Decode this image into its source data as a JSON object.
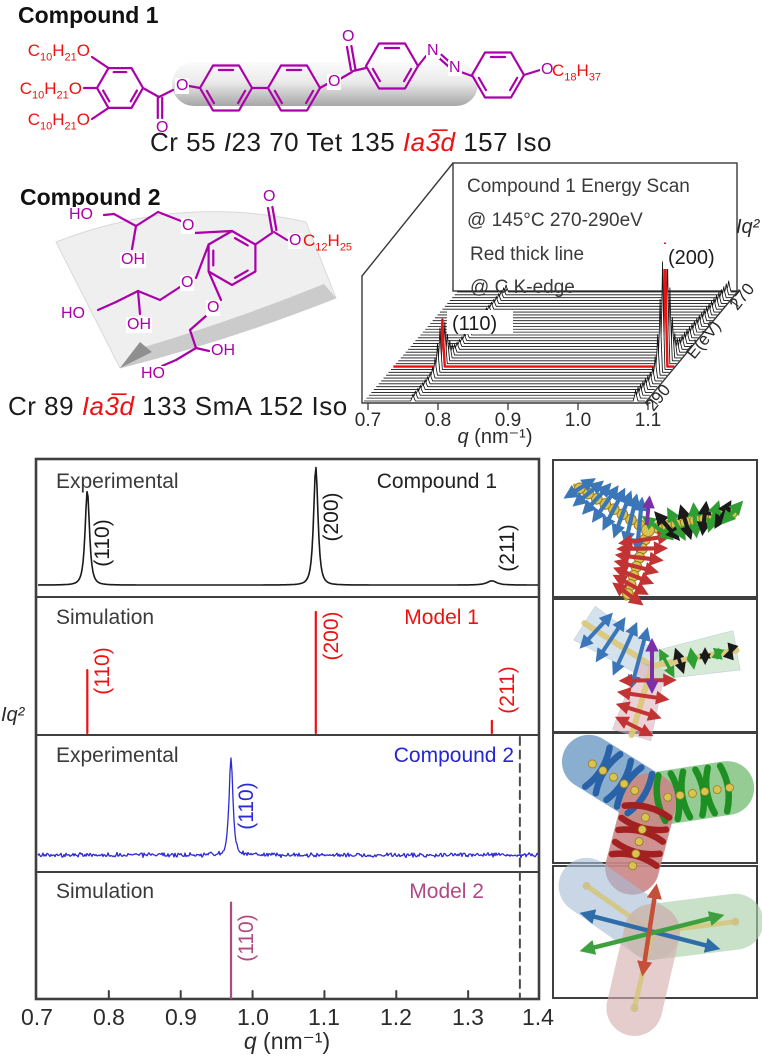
{
  "compound1": {
    "title": "Compound 1",
    "chain_labels": [
      "C10H21O",
      "C10H21O",
      "C10H21O"
    ],
    "tail_O": "O",
    "tail_label": "C18H37",
    "atom_O": "O",
    "atom_N": "N",
    "phase_segments": [
      {
        "text": "Cr 55 ",
        "cls": ""
      },
      {
        "text": "I",
        "cls": "it"
      },
      {
        "text": "23 70 Tet 135 ",
        "cls": ""
      },
      {
        "text": "Ia3̅d",
        "cls": "it red"
      },
      {
        "text": " 157 Iso",
        "cls": ""
      }
    ],
    "bond_color": "#aa00aa",
    "alkyl_color": "#ee1111"
  },
  "compound2": {
    "title": "Compound 2",
    "ester_O": "O",
    "tail_label": "C12H25",
    "ether_O": "O",
    "ho": "HO",
    "oh": "OH",
    "phase_segments": [
      {
        "text": "Cr 89 ",
        "cls": ""
      },
      {
        "text": "Ia3̅d",
        "cls": "it red"
      },
      {
        "text": " 133 SmA 152 Iso",
        "cls": ""
      }
    ]
  },
  "chart_data": [
    {
      "id": "energy_scan",
      "type": "line",
      "style_3d": "waterfall",
      "title_lines": [
        "Compound 1 Energy Scan",
        "@ 145°C 270-290eV",
        "Red thick line",
        "@ C K-edge"
      ],
      "ylabel": "Iq²",
      "zlabel": "E(eV)",
      "xlabel_segments": [
        {
          "text": "q",
          "cls": "it"
        },
        {
          "text": " (nm⁻¹)",
          "cls": ""
        }
      ],
      "x_ticks": [
        "0.7",
        "0.8",
        "0.9",
        "1.0",
        "1.1"
      ],
      "q_range": [
        0.7,
        1.1
      ],
      "e_ticks": [
        "270",
        "290"
      ],
      "e_range": [
        270,
        290
      ],
      "scans": {
        "n": 39,
        "e_front": 290,
        "e_back": 270,
        "red_index_from_front": 12
      },
      "peaks": [
        {
          "hkl": "(110)",
          "q": 0.77
        },
        {
          "hkl": "(200)",
          "q": 1.088
        }
      ],
      "highlight_color": "#ee1111",
      "line_color": "#141414"
    },
    {
      "id": "diffraction_panels",
      "type": "line",
      "ylabel": "Iq²",
      "x": {
        "min": 0.7,
        "max": 1.4,
        "ticks": [
          "0.7",
          "0.8",
          "0.9",
          "1.0",
          "1.1",
          "1.2",
          "1.3",
          "1.4"
        ],
        "label_segments": [
          {
            "text": "q",
            "cls": "it"
          },
          {
            "text": " (nm⁻¹)",
            "cls": ""
          }
        ]
      },
      "dashed_line_q": 1.372,
      "panels": [
        {
          "left_label": "Experimental",
          "right_label": "Compound 1",
          "right_color": "#222222",
          "color": "#1a1a1a",
          "style": "curve",
          "peaks": [
            {
              "hkl": "(110)",
              "q": 0.77,
              "rel_h": 0.8,
              "w": 0.0045,
              "label_cy": 543
            },
            {
              "hkl": "(200)",
              "q": 1.088,
              "rel_h": 1.0,
              "w": 0.0045,
              "label_cy": 517
            },
            {
              "hkl": "(211)",
              "q": 1.333,
              "rel_h": 0.035,
              "w": 0.01,
              "label_cy": 548
            }
          ]
        },
        {
          "left_label": "Simulation",
          "right_label": "Model 1",
          "right_color": "#ee1111",
          "color": "#ee1111",
          "style": "sticks",
          "peaks": [
            {
              "hkl": "(110)",
              "q": 0.77,
              "rel_h": 0.52,
              "label_cy": 671
            },
            {
              "hkl": "(200)",
              "q": 1.088,
              "rel_h": 1.0,
              "label_cy": 636
            },
            {
              "hkl": "(211)",
              "q": 1.333,
              "rel_h": 0.1,
              "label_cy": 690
            }
          ]
        },
        {
          "left_label": "Experimental",
          "right_label": "Compound 2",
          "right_color": "#2525d6",
          "color": "#2a2ad8",
          "style": "curve",
          "noise": true,
          "peaks": [
            {
              "hkl": "(110)",
              "q": 0.97,
              "rel_h": 0.97,
              "w": 0.004,
              "label_cy": 806
            }
          ]
        },
        {
          "left_label": "Simulation",
          "right_label": "Model 2",
          "right_color": "#b04a82",
          "color": "#b04a82",
          "style": "sticks",
          "peaks": [
            {
              "hkl": "(110)",
              "q": 0.97,
              "rel_h": 0.86,
              "label_cy": 938
            }
          ]
        }
      ]
    }
  ],
  "junction_art": {
    "node_color": "#d9c351",
    "node_edge": "#9a7d1f",
    "rod_color": "#c8b144",
    "colors": {
      "blue": "#3a76b8",
      "red": "#c23434",
      "green": "#2f9e33",
      "black": "#1a1a1a",
      "purple": "#7d2fa8"
    },
    "ribbon_fills": {
      "blue": "#b8cfe4",
      "red": "#e0b4bc",
      "green": "#bedcbe"
    },
    "cylinder_fills": {
      "blue": "#7fa8cc",
      "green": "#8cc88c",
      "red": "#cc8888"
    },
    "helix_colors": {
      "blue": "#2a62a8",
      "green": "#1e8f22",
      "red": "#a32020"
    },
    "translucent_fills": {
      "blue": "#a7bed6",
      "green": "#a8d0a8",
      "red": "#d8b0b0"
    },
    "axis_arrows": {
      "red": "#c4503a",
      "green": "#3fa03f",
      "blue": "#2e6da8"
    },
    "frame_color": "#3f3f3f"
  }
}
